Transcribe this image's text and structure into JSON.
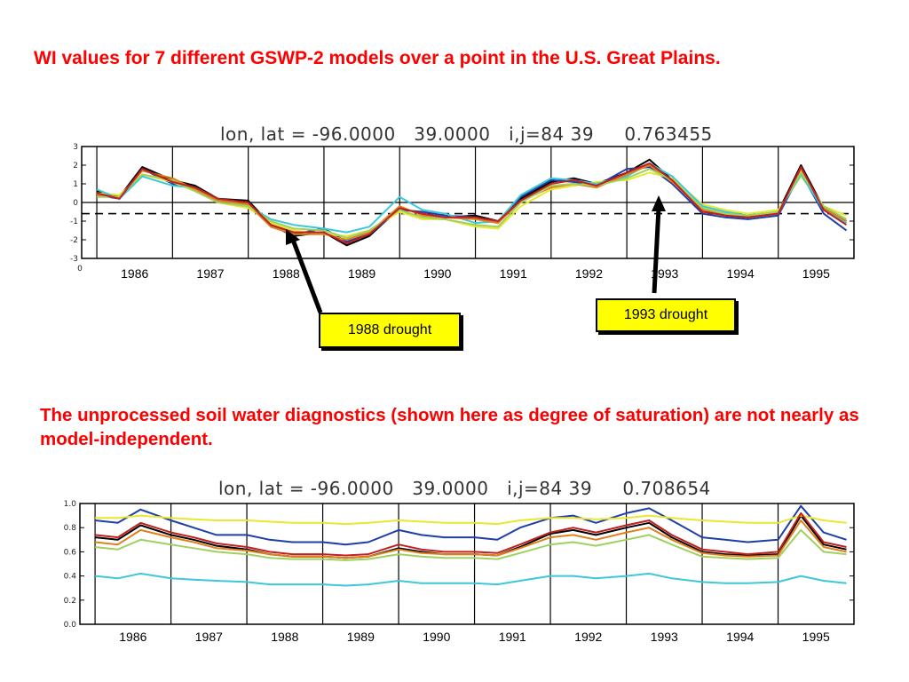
{
  "title": "WI values for 7 different GSWP-2 models over a point in the U.S. Great Plains.",
  "middle_text": "The unprocessed soil water diagnostics (shown here as degree of saturation) are not nearly as model-independent.",
  "callouts": {
    "drought_1988": "1988 drought",
    "drought_1993": "1993 drought"
  },
  "colors": {
    "heading": "#ff0000",
    "callout_fill": "#ffff00",
    "series": [
      "#000000",
      "#1f3fa8",
      "#e8e830",
      "#3cc8d8",
      "#e0801c",
      "#a0d060",
      "#c02020"
    ]
  },
  "chart_data": [
    {
      "type": "line",
      "header": "lon, lat = -96.0000   39.0000   i,j=84 39     0.763455",
      "x_tick_labels": [
        "1986",
        "1987",
        "1988",
        "1989",
        "1990",
        "1991",
        "1992",
        "1993",
        "1994",
        "1995"
      ],
      "y_tick_labels": [
        "3",
        "2",
        "1",
        "0",
        "-1",
        "-2",
        "-3"
      ],
      "extra_axis_label": "0",
      "ylim": [
        -3,
        3
      ],
      "xlim": [
        1985.8,
        1996.0
      ],
      "zero_line": 0,
      "dashed_line": -0.6,
      "x": [
        1986.0,
        1986.3,
        1986.6,
        1987.0,
        1987.3,
        1987.6,
        1988.0,
        1988.3,
        1988.6,
        1989.0,
        1989.3,
        1989.6,
        1990.0,
        1990.3,
        1990.6,
        1991.0,
        1991.3,
        1991.6,
        1992.0,
        1992.3,
        1992.6,
        1993.0,
        1993.3,
        1993.6,
        1994.0,
        1994.3,
        1994.6,
        1995.0,
        1995.3,
        1995.6,
        1995.9
      ],
      "series": [
        {
          "values": [
            0.6,
            0.3,
            1.9,
            1.2,
            0.9,
            0.2,
            0.1,
            -1.2,
            -1.8,
            -1.6,
            -2.3,
            -1.8,
            -0.3,
            -0.6,
            -0.8,
            -0.7,
            -1.0,
            0.2,
            1.1,
            1.3,
            1.0,
            1.6,
            2.3,
            1.2,
            -0.4,
            -0.7,
            -0.8,
            -0.5,
            2.0,
            -0.3,
            -1.0
          ]
        },
        {
          "values": [
            0.4,
            0.2,
            1.8,
            1.0,
            0.7,
            0.1,
            -0.1,
            -1.3,
            -1.7,
            -1.4,
            -2.1,
            -1.7,
            -0.4,
            -0.5,
            -0.7,
            -0.8,
            -1.1,
            0.3,
            1.2,
            1.1,
            0.9,
            1.8,
            1.9,
            1.0,
            -0.6,
            -0.8,
            -0.9,
            -0.7,
            1.6,
            -0.6,
            -1.5
          ]
        },
        {
          "values": [
            0.5,
            0.4,
            1.5,
            1.1,
            0.6,
            0.0,
            -0.3,
            -1.1,
            -1.5,
            -1.7,
            -1.8,
            -1.5,
            -0.5,
            -0.9,
            -0.9,
            -1.3,
            -1.4,
            -0.2,
            0.7,
            0.9,
            1.1,
            1.2,
            1.6,
            1.3,
            -0.1,
            -0.4,
            -0.6,
            -0.4,
            1.4,
            -0.2,
            -0.7
          ]
        },
        {
          "values": [
            0.7,
            0.2,
            1.4,
            0.9,
            0.8,
            0.2,
            -0.2,
            -0.9,
            -1.2,
            -1.4,
            -1.6,
            -1.3,
            0.3,
            -0.4,
            -0.6,
            -1.1,
            -1.0,
            0.4,
            1.3,
            1.2,
            1.0,
            1.4,
            2.1,
            1.4,
            -0.2,
            -0.5,
            -0.7,
            -0.5,
            1.5,
            -0.4,
            -1.1
          ]
        },
        {
          "values": [
            0.4,
            0.3,
            1.7,
            1.3,
            0.7,
            0.1,
            -0.1,
            -1.3,
            -1.7,
            -1.7,
            -2.0,
            -1.6,
            -0.2,
            -0.7,
            -0.8,
            -0.9,
            -1.1,
            0.1,
            0.8,
            1.0,
            0.8,
            1.5,
            2.0,
            1.1,
            -0.4,
            -0.6,
            -0.8,
            -0.6,
            1.8,
            -0.3,
            -1.0
          ]
        },
        {
          "values": [
            0.3,
            0.3,
            1.5,
            1.2,
            0.6,
            0.0,
            -0.2,
            -1.0,
            -1.4,
            -1.5,
            -1.9,
            -1.5,
            -0.4,
            -0.8,
            -0.9,
            -1.2,
            -1.3,
            0.0,
            0.9,
            1.0,
            0.9,
            1.3,
            1.8,
            1.2,
            -0.3,
            -0.6,
            -0.7,
            -0.5,
            1.6,
            -0.2,
            -0.9
          ]
        },
        {
          "values": [
            0.5,
            0.2,
            1.8,
            1.1,
            0.8,
            0.2,
            0.0,
            -1.2,
            -1.6,
            -1.6,
            -2.2,
            -1.7,
            -0.3,
            -0.6,
            -0.8,
            -0.8,
            -1.0,
            0.1,
            1.0,
            1.2,
            0.9,
            1.6,
            2.1,
            1.2,
            -0.5,
            -0.7,
            -0.8,
            -0.6,
            1.9,
            -0.4,
            -1.2
          ]
        }
      ]
    },
    {
      "type": "line",
      "header": "lon, lat = -96.0000   39.0000   i,j=84 39     0.708654",
      "x_tick_labels": [
        "1986",
        "1987",
        "1988",
        "1989",
        "1990",
        "1991",
        "1992",
        "1993",
        "1994",
        "1995"
      ],
      "y_tick_labels": [
        "1.0",
        "0.8",
        "0.6",
        "0.4",
        "0.2",
        "0.0"
      ],
      "ylim": [
        0.0,
        1.0
      ],
      "xlim": [
        1985.8,
        1996.0
      ],
      "x": [
        1986.0,
        1986.3,
        1986.6,
        1987.0,
        1987.3,
        1987.6,
        1988.0,
        1988.3,
        1988.6,
        1989.0,
        1989.3,
        1989.6,
        1990.0,
        1990.3,
        1990.6,
        1991.0,
        1991.3,
        1991.6,
        1992.0,
        1992.3,
        1992.6,
        1993.0,
        1993.3,
        1993.6,
        1994.0,
        1994.3,
        1994.6,
        1995.0,
        1995.3,
        1995.6,
        1995.9
      ],
      "series": [
        {
          "values": [
            0.72,
            0.7,
            0.82,
            0.74,
            0.7,
            0.65,
            0.62,
            0.58,
            0.56,
            0.56,
            0.55,
            0.56,
            0.63,
            0.6,
            0.58,
            0.58,
            0.57,
            0.64,
            0.75,
            0.78,
            0.74,
            0.8,
            0.84,
            0.72,
            0.6,
            0.58,
            0.57,
            0.58,
            0.9,
            0.66,
            0.62
          ]
        },
        {
          "values": [
            0.86,
            0.84,
            0.95,
            0.86,
            0.8,
            0.74,
            0.74,
            0.7,
            0.68,
            0.68,
            0.66,
            0.68,
            0.78,
            0.74,
            0.72,
            0.72,
            0.7,
            0.8,
            0.88,
            0.9,
            0.84,
            0.92,
            0.96,
            0.86,
            0.72,
            0.7,
            0.68,
            0.7,
            0.98,
            0.76,
            0.7
          ]
        },
        {
          "values": [
            0.88,
            0.88,
            0.9,
            0.88,
            0.87,
            0.86,
            0.86,
            0.85,
            0.84,
            0.84,
            0.83,
            0.84,
            0.86,
            0.85,
            0.84,
            0.84,
            0.83,
            0.86,
            0.88,
            0.88,
            0.87,
            0.88,
            0.9,
            0.88,
            0.86,
            0.85,
            0.84,
            0.84,
            0.9,
            0.86,
            0.84
          ]
        },
        {
          "values": [
            0.4,
            0.38,
            0.42,
            0.38,
            0.37,
            0.36,
            0.35,
            0.33,
            0.33,
            0.33,
            0.32,
            0.33,
            0.36,
            0.34,
            0.34,
            0.34,
            0.33,
            0.36,
            0.4,
            0.4,
            0.38,
            0.4,
            0.42,
            0.38,
            0.35,
            0.34,
            0.34,
            0.35,
            0.4,
            0.36,
            0.34
          ]
        },
        {
          "values": [
            0.68,
            0.66,
            0.78,
            0.72,
            0.68,
            0.63,
            0.61,
            0.58,
            0.56,
            0.56,
            0.55,
            0.56,
            0.62,
            0.59,
            0.58,
            0.58,
            0.57,
            0.63,
            0.72,
            0.74,
            0.7,
            0.76,
            0.8,
            0.7,
            0.59,
            0.57,
            0.56,
            0.57,
            0.86,
            0.64,
            0.6
          ]
        },
        {
          "values": [
            0.64,
            0.62,
            0.7,
            0.66,
            0.63,
            0.6,
            0.58,
            0.55,
            0.54,
            0.54,
            0.53,
            0.54,
            0.58,
            0.56,
            0.55,
            0.55,
            0.54,
            0.59,
            0.66,
            0.68,
            0.65,
            0.7,
            0.74,
            0.66,
            0.56,
            0.55,
            0.54,
            0.55,
            0.78,
            0.6,
            0.58
          ]
        },
        {
          "values": [
            0.74,
            0.72,
            0.84,
            0.76,
            0.72,
            0.67,
            0.64,
            0.6,
            0.58,
            0.58,
            0.57,
            0.58,
            0.66,
            0.62,
            0.6,
            0.6,
            0.59,
            0.66,
            0.76,
            0.8,
            0.76,
            0.82,
            0.86,
            0.74,
            0.62,
            0.6,
            0.58,
            0.6,
            0.92,
            0.68,
            0.64
          ]
        }
      ]
    }
  ]
}
